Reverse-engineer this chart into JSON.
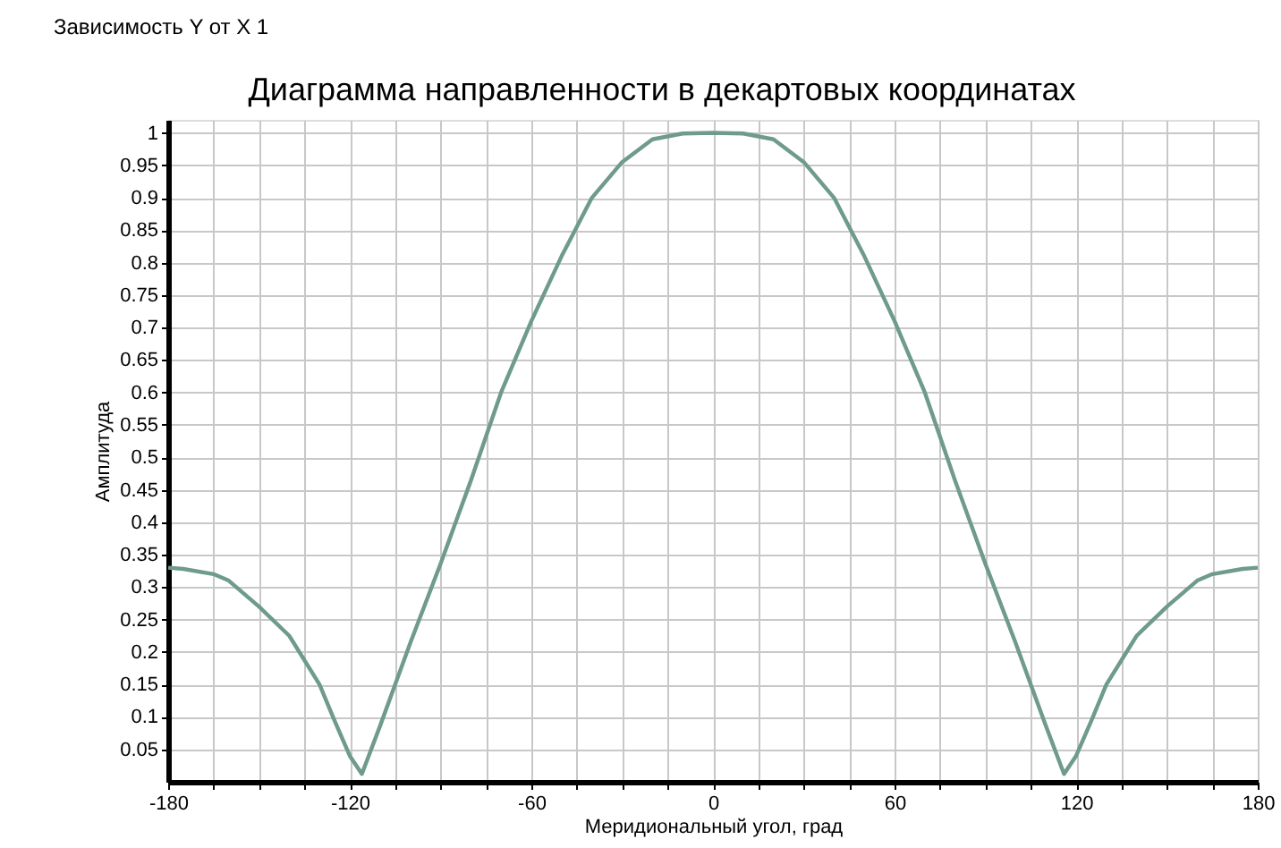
{
  "chart_data": {
    "type": "line",
    "title": "Диаграмма направленности в декартовых координатах",
    "xlabel": "Меридиональный угол, град",
    "ylabel": "Амплитуда",
    "annotations": [
      "Зависимость Y от X 1"
    ],
    "x": [
      -180,
      -175,
      -165,
      -160,
      -150,
      -140,
      -130,
      -125,
      -120,
      -116,
      -110,
      -100,
      -90,
      -80,
      -70,
      -60,
      -50,
      -40,
      -30,
      -20,
      -10,
      0,
      10,
      20,
      30,
      40,
      50,
      60,
      70,
      80,
      90,
      100,
      110,
      116,
      120,
      125,
      130,
      140,
      150,
      160,
      165,
      175,
      180
    ],
    "series": [
      {
        "color": "#6f9a8e",
        "values": [
          0.33,
          0.328,
          0.32,
          0.31,
          0.27,
          0.225,
          0.15,
          0.094,
          0.04,
          0.012,
          0.086,
          0.214,
          0.336,
          0.464,
          0.6,
          0.71,
          0.81,
          0.9,
          0.955,
          0.99,
          0.999,
          1.0,
          0.999,
          0.99,
          0.955,
          0.9,
          0.81,
          0.71,
          0.6,
          0.464,
          0.336,
          0.214,
          0.086,
          0.012,
          0.04,
          0.094,
          0.15,
          0.225,
          0.27,
          0.31,
          0.32,
          0.328,
          0.33
        ]
      }
    ],
    "xlim": [
      -180,
      180
    ],
    "ylim": [
      0,
      1.02
    ],
    "xticks": [
      -180,
      {
        "value": -165,
        "label": null
      },
      {
        "value": -150,
        "label": null
      },
      {
        "value": -135,
        "label": null
      },
      -120,
      {
        "value": -105,
        "label": null
      },
      {
        "value": -90,
        "label": null
      },
      {
        "value": -75,
        "label": null
      },
      -60,
      {
        "value": -45,
        "label": null
      },
      {
        "value": -30,
        "label": null
      },
      {
        "value": -15,
        "label": null
      },
      0,
      {
        "value": 15,
        "label": null
      },
      {
        "value": 30,
        "label": null
      },
      {
        "value": 45,
        "label": null
      },
      60,
      {
        "value": 75,
        "label": null
      },
      {
        "value": 90,
        "label": null
      },
      {
        "value": 105,
        "label": null
      },
      120,
      {
        "value": 135,
        "label": null
      },
      {
        "value": 150,
        "label": null
      },
      {
        "value": 165,
        "label": null
      },
      180
    ],
    "yticks": [
      0.05,
      0.1,
      0.15,
      0.2,
      0.25,
      0.3,
      0.35,
      0.4,
      0.45,
      0.5,
      0.55,
      0.6,
      0.65,
      0.7,
      0.75,
      0.8,
      0.85,
      0.9,
      0.95,
      1
    ],
    "grid": true,
    "legend": false,
    "marker": "none",
    "line_style": "solid"
  }
}
